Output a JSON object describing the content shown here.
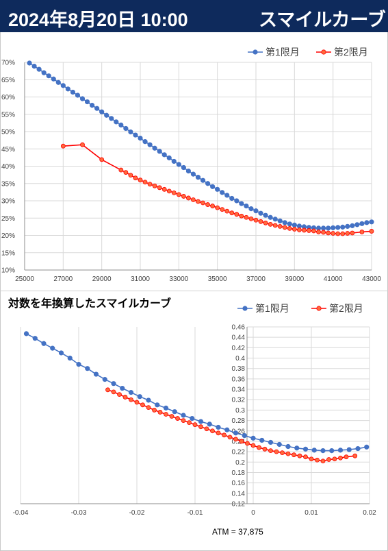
{
  "header": {
    "datetime": "2024年8月20日 10:00",
    "title": "スマイルカーブ"
  },
  "colors": {
    "series1": "#4472c4",
    "series2": "#ff0000",
    "series2_fill": "#ff6a3d",
    "header_bg": "#0e2a5c"
  },
  "chart_data": [
    {
      "type": "line",
      "title": "",
      "legend_position": "top-right",
      "grid": true,
      "xlim": [
        25000,
        43000
      ],
      "ylim": [
        0.1,
        0.7
      ],
      "x_ticks": [
        "25000",
        "27000",
        "29000",
        "31000",
        "33000",
        "35000",
        "37000",
        "39000",
        "41000",
        "43000"
      ],
      "y_ticks": [
        "10%",
        "15%",
        "20%",
        "25%",
        "30%",
        "35%",
        "40%",
        "45%",
        "50%",
        "55%",
        "60%",
        "65%",
        "70%"
      ],
      "series": [
        {
          "name": "第1限月",
          "x": [
            25250,
            25500,
            25750,
            26000,
            26250,
            26500,
            26750,
            27000,
            27250,
            27500,
            27750,
            28000,
            28250,
            28500,
            28750,
            29000,
            29250,
            29500,
            29750,
            30000,
            30250,
            30500,
            30750,
            31000,
            31250,
            31500,
            31750,
            32000,
            32250,
            32500,
            32750,
            33000,
            33250,
            33500,
            33750,
            34000,
            34250,
            34500,
            34750,
            35000,
            35250,
            35500,
            35750,
            36000,
            36250,
            36500,
            36750,
            37000,
            37250,
            37500,
            37750,
            38000,
            38250,
            38500,
            38750,
            39000,
            39250,
            39500,
            39750,
            40000,
            40250,
            40500,
            40750,
            41000,
            41250,
            41500,
            41750,
            42000,
            42250,
            42500,
            42750,
            43000
          ],
          "values": [
            0.698,
            0.689,
            0.68,
            0.67,
            0.661,
            0.652,
            0.642,
            0.633,
            0.623,
            0.614,
            0.605,
            0.595,
            0.586,
            0.576,
            0.567,
            0.557,
            0.547,
            0.538,
            0.528,
            0.519,
            0.509,
            0.499,
            0.49,
            0.481,
            0.471,
            0.462,
            0.452,
            0.443,
            0.433,
            0.424,
            0.414,
            0.405,
            0.396,
            0.386,
            0.377,
            0.368,
            0.359,
            0.35,
            0.341,
            0.333,
            0.324,
            0.316,
            0.307,
            0.3,
            0.292,
            0.285,
            0.277,
            0.271,
            0.264,
            0.258,
            0.252,
            0.247,
            0.242,
            0.237,
            0.233,
            0.23,
            0.227,
            0.225,
            0.223,
            0.222,
            0.221,
            0.221,
            0.221,
            0.222,
            0.223,
            0.224,
            0.226,
            0.228,
            0.231,
            0.234,
            0.237,
            0.239
          ]
        },
        {
          "name": "第2限月",
          "x": [
            27000,
            28000,
            29000,
            30000,
            30250,
            30500,
            30750,
            31000,
            31250,
            31500,
            31750,
            32000,
            32250,
            32500,
            32750,
            33000,
            33250,
            33500,
            33750,
            34000,
            34250,
            34500,
            34750,
            35000,
            35250,
            35500,
            35750,
            36000,
            36250,
            36500,
            36750,
            37000,
            37250,
            37500,
            37750,
            38000,
            38250,
            38500,
            38750,
            39000,
            39250,
            39500,
            39750,
            40000,
            40250,
            40500,
            40750,
            41000,
            41250,
            41500,
            41750,
            42000,
            42500,
            43000
          ],
          "values": [
            0.458,
            0.462,
            0.419,
            0.389,
            0.382,
            0.374,
            0.366,
            0.36,
            0.354,
            0.348,
            0.343,
            0.338,
            0.333,
            0.328,
            0.323,
            0.318,
            0.313,
            0.308,
            0.303,
            0.298,
            0.294,
            0.289,
            0.285,
            0.28,
            0.275,
            0.27,
            0.265,
            0.261,
            0.256,
            0.252,
            0.248,
            0.244,
            0.24,
            0.236,
            0.232,
            0.229,
            0.226,
            0.223,
            0.22,
            0.218,
            0.216,
            0.215,
            0.214,
            0.213,
            0.21,
            0.209,
            0.207,
            0.206,
            0.205,
            0.205,
            0.206,
            0.207,
            0.21,
            0.212
          ]
        }
      ]
    },
    {
      "type": "line",
      "title": "対数を年換算したスマイルカーブ",
      "legend_position": "top-right",
      "grid": true,
      "xlim": [
        -0.04,
        0.02
      ],
      "ylim": [
        0.12,
        0.46
      ],
      "x_ticks": [
        "-0.04",
        "-0.03",
        "-0.02",
        "-0.01",
        "0",
        "0.01",
        "0.02"
      ],
      "y_ticks": [
        "0.12",
        "0.14",
        "0.16",
        "0.18",
        "0.2",
        "0.22",
        "0.24",
        "0.26",
        "0.28",
        "0.3",
        "0.32",
        "0.34",
        "0.36",
        "0.38",
        "0.4",
        "0.42",
        "0.44",
        "0.46"
      ],
      "series": [
        {
          "name": "第1限月",
          "x": [
            -0.039,
            -0.0375,
            -0.036,
            -0.0345,
            -0.033,
            -0.0315,
            -0.03,
            -0.0285,
            -0.027,
            -0.0255,
            -0.024,
            -0.0225,
            -0.021,
            -0.0195,
            -0.018,
            -0.0165,
            -0.015,
            -0.0135,
            -0.012,
            -0.0105,
            -0.009,
            -0.0075,
            -0.006,
            -0.0045,
            -0.003,
            -0.0015,
            0.0,
            0.0015,
            0.003,
            0.0045,
            0.006,
            0.0075,
            0.009,
            0.0105,
            0.012,
            0.0135,
            0.015,
            0.0165,
            0.018,
            0.0195
          ],
          "values": [
            0.447,
            0.438,
            0.428,
            0.419,
            0.41,
            0.4,
            0.388,
            0.38,
            0.369,
            0.359,
            0.351,
            0.342,
            0.334,
            0.326,
            0.319,
            0.31,
            0.304,
            0.297,
            0.29,
            0.284,
            0.278,
            0.273,
            0.267,
            0.262,
            0.256,
            0.251,
            0.246,
            0.242,
            0.238,
            0.234,
            0.23,
            0.227,
            0.225,
            0.223,
            0.222,
            0.222,
            0.223,
            0.224,
            0.226,
            0.229
          ]
        },
        {
          "name": "第2限月",
          "x": [
            -0.025,
            -0.024,
            -0.023,
            -0.022,
            -0.021,
            -0.02,
            -0.019,
            -0.018,
            -0.017,
            -0.016,
            -0.015,
            -0.014,
            -0.013,
            -0.012,
            -0.011,
            -0.01,
            -0.009,
            -0.008,
            -0.007,
            -0.006,
            -0.005,
            -0.004,
            -0.003,
            -0.002,
            -0.001,
            0.0,
            0.001,
            0.002,
            0.003,
            0.004,
            0.005,
            0.006,
            0.007,
            0.008,
            0.009,
            0.01,
            0.011,
            0.012,
            0.013,
            0.014,
            0.015,
            0.016,
            0.0175
          ],
          "values": [
            0.339,
            0.335,
            0.33,
            0.325,
            0.32,
            0.315,
            0.31,
            0.305,
            0.3,
            0.296,
            0.292,
            0.288,
            0.284,
            0.28,
            0.276,
            0.272,
            0.268,
            0.264,
            0.26,
            0.256,
            0.252,
            0.248,
            0.244,
            0.24,
            0.236,
            0.232,
            0.228,
            0.225,
            0.222,
            0.22,
            0.218,
            0.216,
            0.214,
            0.212,
            0.21,
            0.206,
            0.204,
            0.202,
            0.205,
            0.206,
            0.208,
            0.21,
            0.212
          ]
        }
      ]
    }
  ],
  "footer": {
    "atm": "ATM = 37,875"
  }
}
